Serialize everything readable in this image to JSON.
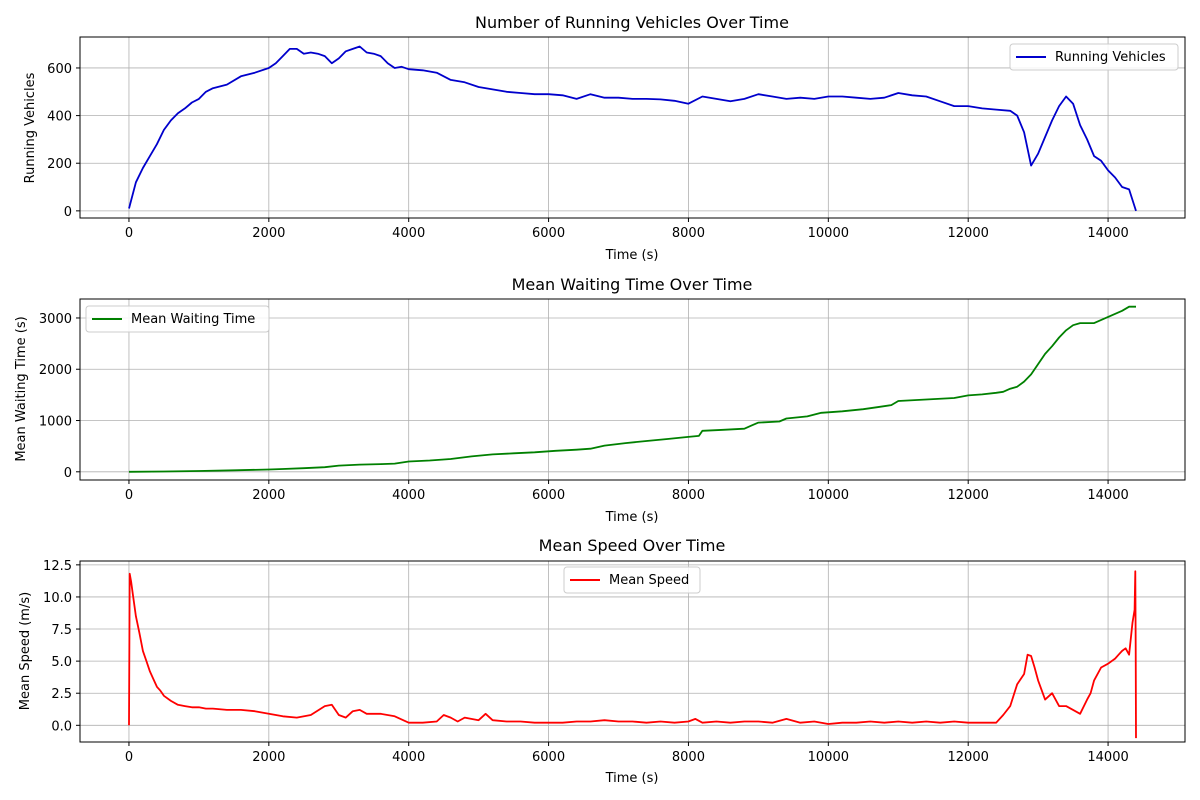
{
  "chart_data": [
    {
      "type": "line",
      "title": "Number of Running Vehicles Over Time",
      "xlabel": "Time (s)",
      "ylabel": "Running Vehicles",
      "xlim": [
        -700,
        15100
      ],
      "ylim": [
        -30,
        730
      ],
      "xticks": [
        0,
        2000,
        4000,
        6000,
        8000,
        10000,
        12000,
        14000
      ],
      "yticks": [
        0,
        200,
        400,
        600
      ],
      "yticklabels": [
        "0",
        "200",
        "400",
        "600"
      ],
      "grid": true,
      "legend_position": "upper-right",
      "series": [
        {
          "name": "Running Vehicles",
          "color": "#0000cc",
          "x": [
            0,
            100,
            200,
            300,
            400,
            500,
            600,
            700,
            800,
            900,
            1000,
            1100,
            1200,
            1400,
            1600,
            1800,
            2000,
            2100,
            2200,
            2300,
            2400,
            2500,
            2600,
            2700,
            2800,
            2900,
            3000,
            3100,
            3200,
            3300,
            3400,
            3500,
            3600,
            3700,
            3800,
            3900,
            4000,
            4200,
            4400,
            4600,
            4800,
            5000,
            5200,
            5400,
            5600,
            5800,
            6000,
            6200,
            6400,
            6600,
            6800,
            7000,
            7200,
            7400,
            7600,
            7800,
            8000,
            8200,
            8400,
            8600,
            8800,
            9000,
            9200,
            9400,
            9600,
            9800,
            10000,
            10200,
            10400,
            10600,
            10800,
            11000,
            11200,
            11400,
            11600,
            11800,
            12000,
            12200,
            12400,
            12600,
            12700,
            12800,
            12900,
            13000,
            13100,
            13200,
            13300,
            13400,
            13500,
            13600,
            13700,
            13800,
            13900,
            14000,
            14100,
            14200,
            14300,
            14400
          ],
          "y": [
            10,
            120,
            180,
            230,
            280,
            340,
            380,
            410,
            430,
            455,
            470,
            500,
            515,
            530,
            565,
            580,
            600,
            620,
            650,
            680,
            680,
            660,
            665,
            660,
            650,
            620,
            640,
            670,
            680,
            690,
            665,
            660,
            650,
            620,
            600,
            605,
            595,
            590,
            580,
            550,
            540,
            520,
            510,
            500,
            495,
            490,
            490,
            485,
            470,
            490,
            475,
            475,
            470,
            470,
            468,
            462,
            450,
            480,
            470,
            460,
            470,
            490,
            480,
            470,
            475,
            470,
            480,
            480,
            475,
            470,
            475,
            495,
            485,
            480,
            460,
            440,
            440,
            430,
            425,
            420,
            400,
            330,
            190,
            240,
            310,
            380,
            440,
            480,
            450,
            360,
            300,
            230,
            210,
            170,
            140,
            100,
            90,
            0
          ]
        }
      ]
    },
    {
      "type": "line",
      "title": "Mean Waiting Time Over Time",
      "xlabel": "Time (s)",
      "ylabel": "Mean Waiting Time (s)",
      "xlim": [
        -700,
        15100
      ],
      "ylim": [
        -160,
        3370
      ],
      "xticks": [
        0,
        2000,
        4000,
        6000,
        8000,
        10000,
        12000,
        14000
      ],
      "yticks": [
        0,
        1000,
        2000,
        3000
      ],
      "yticklabels": [
        "0",
        "1000",
        "2000",
        "3000"
      ],
      "grid": true,
      "legend_position": "upper-left",
      "series": [
        {
          "name": "Mean Waiting Time",
          "color": "#008000",
          "x": [
            0,
            500,
            1000,
            1500,
            2000,
            2200,
            2500,
            2800,
            3000,
            3300,
            3600,
            3800,
            4000,
            4300,
            4600,
            4900,
            5200,
            5500,
            5800,
            6100,
            6400,
            6600,
            6800,
            7100,
            7400,
            7700,
            8000,
            8150,
            8200,
            8500,
            8800,
            8900,
            9000,
            9300,
            9400,
            9700,
            9900,
            10200,
            10500,
            10700,
            10900,
            11000,
            11400,
            11800,
            12000,
            12200,
            12400,
            12500,
            12600,
            12700,
            12800,
            12900,
            13000,
            13100,
            13200,
            13300,
            13400,
            13500,
            13600,
            13800,
            14000,
            14200,
            14300,
            14400
          ],
          "y": [
            0,
            5,
            15,
            30,
            45,
            55,
            70,
            90,
            120,
            140,
            150,
            160,
            200,
            220,
            250,
            300,
            340,
            360,
            380,
            410,
            430,
            450,
            510,
            560,
            600,
            640,
            680,
            700,
            800,
            820,
            840,
            900,
            960,
            980,
            1040,
            1080,
            1150,
            1180,
            1220,
            1260,
            1300,
            1380,
            1410,
            1440,
            1490,
            1510,
            1540,
            1560,
            1620,
            1660,
            1760,
            1900,
            2100,
            2300,
            2450,
            2620,
            2760,
            2860,
            2900,
            2900,
            3020,
            3140,
            3220,
            3220
          ]
        }
      ]
    },
    {
      "type": "line",
      "title": "Mean Speed Over Time",
      "xlabel": "Time (s)",
      "ylabel": "Mean Speed (m/s)",
      "xlim": [
        -700,
        15100
      ],
      "ylim": [
        -1.3,
        12.8
      ],
      "xticks": [
        0,
        2000,
        4000,
        6000,
        8000,
        10000,
        12000,
        14000
      ],
      "yticks": [
        0,
        2.5,
        5,
        7.5,
        10,
        12.5
      ],
      "yticklabels": [
        "0.0",
        "2.5",
        "5.0",
        "7.5",
        "10.0",
        "12.5"
      ],
      "grid": true,
      "legend_position": "upper-center",
      "series": [
        {
          "name": "Mean Speed",
          "color": "#ff0000",
          "x": [
            0,
            10,
            30,
            60,
            100,
            150,
            200,
            250,
            300,
            350,
            400,
            450,
            500,
            600,
            700,
            800,
            900,
            1000,
            1100,
            1200,
            1400,
            1600,
            1800,
            2000,
            2200,
            2400,
            2600,
            2800,
            2900,
            3000,
            3100,
            3200,
            3300,
            3400,
            3600,
            3800,
            4000,
            4200,
            4400,
            4500,
            4600,
            4700,
            4800,
            5000,
            5100,
            5200,
            5400,
            5600,
            5800,
            6000,
            6200,
            6400,
            6600,
            6800,
            7000,
            7200,
            7400,
            7600,
            7800,
            8000,
            8100,
            8200,
            8400,
            8600,
            8800,
            9000,
            9200,
            9400,
            9600,
            9800,
            10000,
            10200,
            10400,
            10600,
            10800,
            11000,
            11200,
            11400,
            11600,
            11800,
            12000,
            12200,
            12400,
            12500,
            12600,
            12700,
            12800,
            12850,
            12900,
            12950,
            13000,
            13100,
            13200,
            13300,
            13400,
            13500,
            13600,
            13700,
            13750,
            13800,
            13900,
            14000,
            14100,
            14150,
            14200,
            14250,
            14300,
            14350,
            14380,
            14390,
            14395,
            14400
          ],
          "y": [
            0,
            11.8,
            11.2,
            10,
            8.5,
            7.2,
            5.8,
            5,
            4.2,
            3.6,
            3,
            2.7,
            2.3,
            1.9,
            1.6,
            1.5,
            1.4,
            1.4,
            1.3,
            1.3,
            1.2,
            1.2,
            1.1,
            0.9,
            0.7,
            0.6,
            0.8,
            1.5,
            1.6,
            0.8,
            0.6,
            1.1,
            1.2,
            0.9,
            0.9,
            0.7,
            0.2,
            0.2,
            0.3,
            0.8,
            0.6,
            0.3,
            0.6,
            0.4,
            0.9,
            0.4,
            0.3,
            0.3,
            0.2,
            0.2,
            0.2,
            0.3,
            0.3,
            0.4,
            0.3,
            0.3,
            0.2,
            0.3,
            0.2,
            0.3,
            0.5,
            0.2,
            0.3,
            0.2,
            0.3,
            0.3,
            0.2,
            0.5,
            0.2,
            0.3,
            0.1,
            0.2,
            0.2,
            0.3,
            0.2,
            0.3,
            0.2,
            0.3,
            0.2,
            0.3,
            0.2,
            0.2,
            0.2,
            0.8,
            1.5,
            3.2,
            4,
            5.5,
            5.4,
            4.5,
            3.5,
            2,
            2.5,
            1.5,
            1.5,
            1.2,
            0.9,
            2,
            2.5,
            3.5,
            4.5,
            4.8,
            5.2,
            5.5,
            5.8,
            6,
            5.5,
            8,
            9,
            12,
            6,
            -1
          ]
        }
      ]
    }
  ]
}
